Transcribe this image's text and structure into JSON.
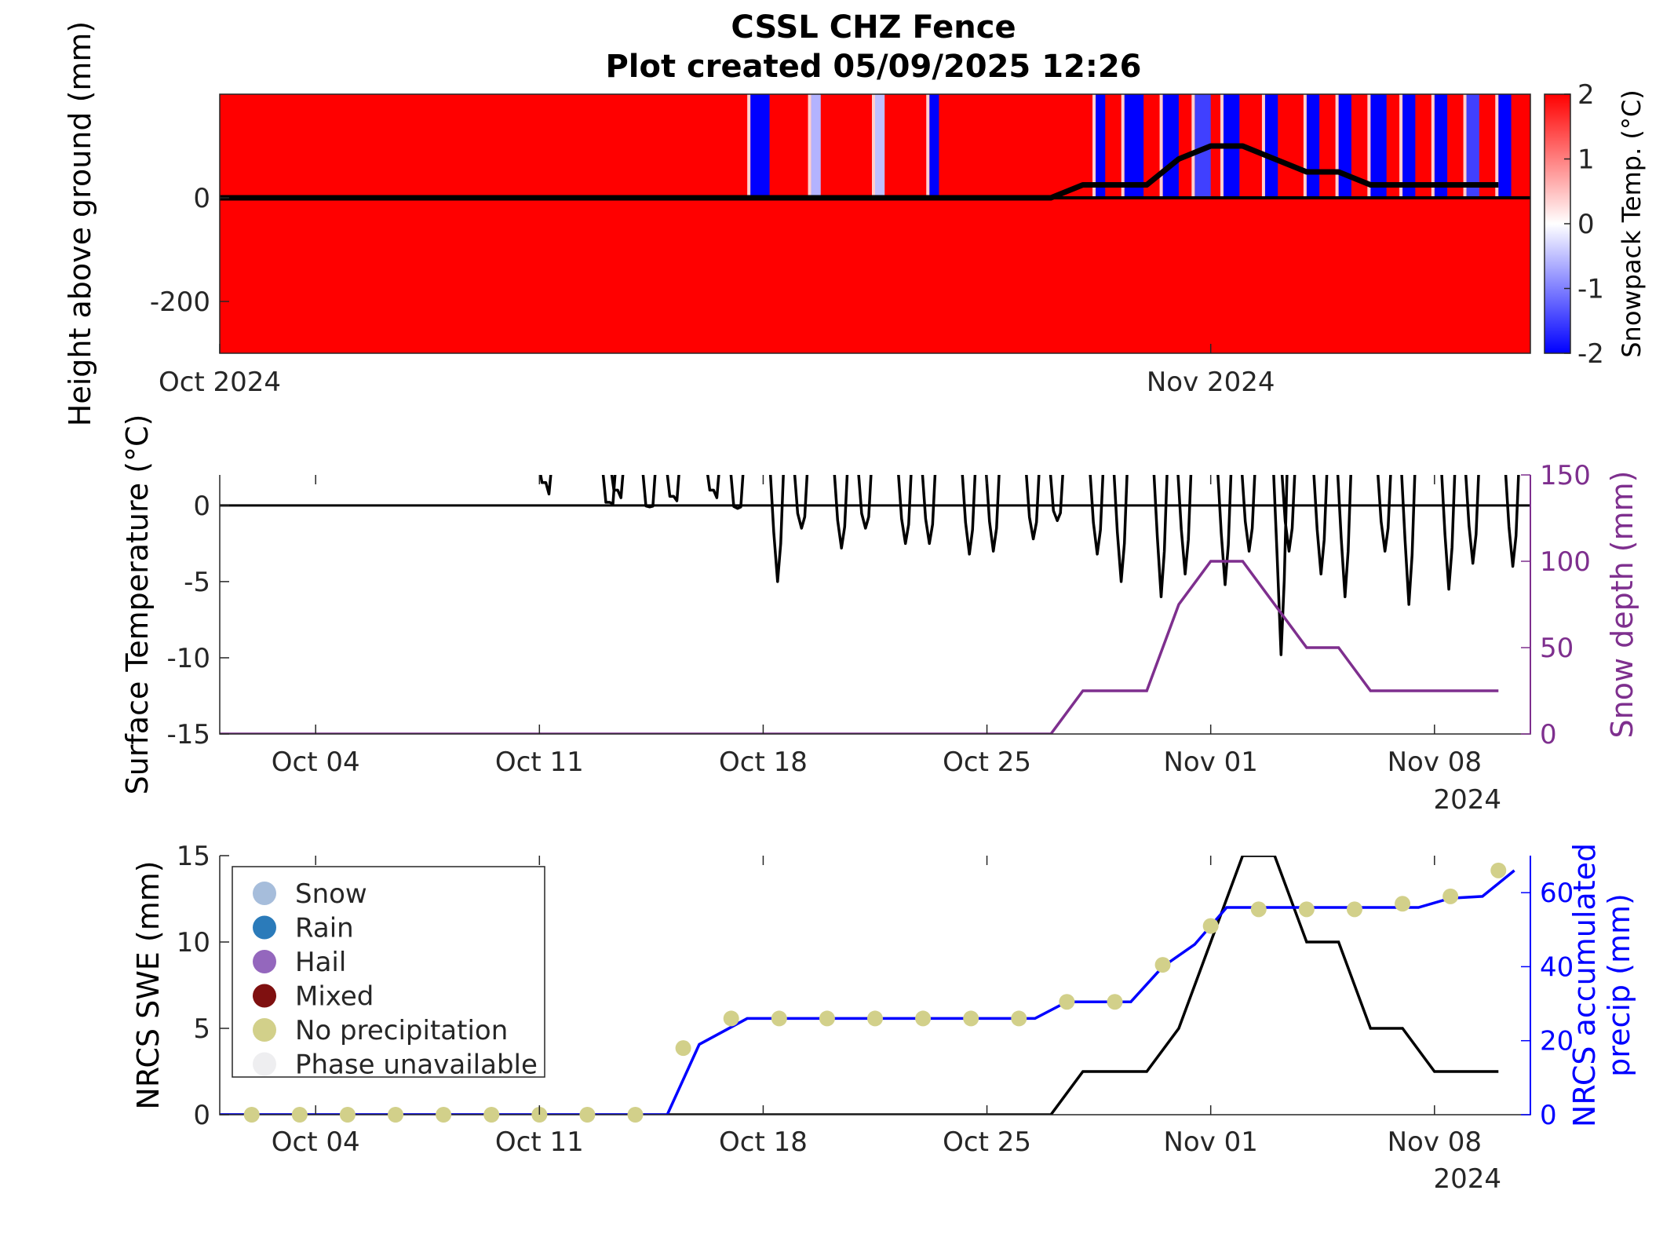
{
  "title": {
    "line1": "CSSL CHZ Fence",
    "line2": "Plot created 05/09/2025 12:26"
  },
  "colors": {
    "warm": "#ff0000",
    "cold": "#0000ff",
    "neutral": "#ffffff",
    "snow_depth": "#7e2f8e",
    "precip": "#0000ff",
    "swe": "#000000",
    "no_precip_marker": "#d2d08a"
  },
  "chart_data": [
    {
      "type": "heatmap",
      "ylabel": "Height above ground (mm)",
      "yticks": [
        -200,
        0
      ],
      "ytick_labels": [
        "-200",
        "0"
      ],
      "ylim": [
        -300,
        200
      ],
      "xlim": [
        "2024-10-01",
        "2024-11-11"
      ],
      "xticks": [
        "2024-10-01",
        "2024-11-01"
      ],
      "xtick_labels": [
        "Oct 2024",
        "Nov 2024"
      ],
      "colorbar": {
        "label": "Snowpack Temp. (°C)",
        "range": [
          -2,
          2
        ],
        "ticks": [
          "2",
          "1",
          "0",
          "-1",
          "-2"
        ],
        "colormap": "blue-white-red"
      },
      "surface_line": {
        "x": [
          "2024-10-01",
          "2024-10-27",
          "2024-10-28",
          "2024-10-30",
          "2024-10-31",
          "2024-11-01",
          "2024-11-02",
          "2024-11-03",
          "2024-11-04",
          "2024-11-05",
          "2024-11-06",
          "2024-11-07",
          "2024-11-10"
        ],
        "y": [
          0,
          0,
          25,
          25,
          75,
          100,
          100,
          75,
          50,
          50,
          25,
          25,
          25
        ]
      },
      "cold_spells": [
        {
          "start": "2024-10-17.6",
          "end": "2024-10-18.2",
          "level": -2
        },
        {
          "start": "2024-10-19.5",
          "end": "2024-10-19.8",
          "level": -0.6
        },
        {
          "start": "2024-10-21.5",
          "end": "2024-10-21.8",
          "level": -0.5
        },
        {
          "start": "2024-10-23.2",
          "end": "2024-10-23.5",
          "level": -2
        },
        {
          "start": "2024-10-28.4",
          "end": "2024-10-28.7",
          "level": -2
        },
        {
          "start": "2024-10-29.3",
          "end": "2024-10-29.9",
          "level": -2
        },
        {
          "start": "2024-10-30.5",
          "end": "2024-10-31.0",
          "level": -2
        },
        {
          "start": "2024-10-31.5",
          "end": "2024-11-01.0",
          "level": -1.5
        },
        {
          "start": "2024-11-01.4",
          "end": "2024-11-01.9",
          "level": -2
        },
        {
          "start": "2024-11-02.7",
          "end": "2024-11-03.1",
          "level": -2
        },
        {
          "start": "2024-11-04.0",
          "end": "2024-11-04.4",
          "level": -2
        },
        {
          "start": "2024-11-05.0",
          "end": "2024-11-05.4",
          "level": -2
        },
        {
          "start": "2024-11-06.0",
          "end": "2024-11-06.5",
          "level": -2
        },
        {
          "start": "2024-11-07.0",
          "end": "2024-11-07.4",
          "level": -2
        },
        {
          "start": "2024-11-08.0",
          "end": "2024-11-08.4",
          "level": -2
        },
        {
          "start": "2024-11-09.0",
          "end": "2024-11-09.4",
          "level": -1.5
        },
        {
          "start": "2024-11-10.0",
          "end": "2024-11-10.4",
          "level": -2
        }
      ]
    },
    {
      "type": "line",
      "ylabel": "Surface Temperature (°C)",
      "y2label": "Snow depth (mm)",
      "ylim": [
        -15,
        2
      ],
      "y2lim": [
        0,
        150
      ],
      "yticks": [
        0,
        -5,
        -10,
        -15
      ],
      "ytick_labels": [
        "0",
        "-5",
        "-10",
        "-15"
      ],
      "y2ticks": [
        150,
        100,
        50,
        0
      ],
      "y2tick_labels": [
        "150",
        "100",
        "50",
        "0"
      ],
      "xlim": [
        "2024-10-01",
        "2024-11-11"
      ],
      "xticks": [
        "2024-10-04",
        "2024-10-11",
        "2024-10-18",
        "2024-10-25",
        "2024-11-01",
        "2024-11-08"
      ],
      "xtick_labels": [
        "Oct 04",
        "Oct 11",
        "Oct 18",
        "Oct 25",
        "Nov 01",
        "Nov 08"
      ],
      "year_label": "2024",
      "series": [
        {
          "name": "Surface temperature",
          "axis": "left",
          "daily_min": [
            {
              "date": "2024-10-11",
              "min": 1.5
            },
            {
              "date": "2024-10-13",
              "min": 1.0
            },
            {
              "date": "2024-10-13",
              "min": 0.2
            },
            {
              "date": "2024-10-14",
              "min": -0.1
            },
            {
              "date": "2024-10-15",
              "min": 0.6
            },
            {
              "date": "2024-10-16",
              "min": 1.0
            },
            {
              "date": "2024-10-17",
              "min": -0.2
            },
            {
              "date": "2024-10-18",
              "min": -5.0
            },
            {
              "date": "2024-10-19",
              "min": -1.5
            },
            {
              "date": "2024-10-20",
              "min": -2.8
            },
            {
              "date": "2024-10-21",
              "min": -1.5
            },
            {
              "date": "2024-10-22",
              "min": -2.5
            },
            {
              "date": "2024-10-23",
              "min": -2.5
            },
            {
              "date": "2024-10-24",
              "min": -3.2
            },
            {
              "date": "2024-10-25",
              "min": -3.0
            },
            {
              "date": "2024-10-26",
              "min": -2.2
            },
            {
              "date": "2024-10-27",
              "min": -1.0
            },
            {
              "date": "2024-10-28",
              "min": -3.2
            },
            {
              "date": "2024-10-29",
              "min": -5.0
            },
            {
              "date": "2024-10-30",
              "min": -6.0
            },
            {
              "date": "2024-10-31",
              "min": -4.5
            },
            {
              "date": "2024-11-01",
              "min": -5.2
            },
            {
              "date": "2024-11-02",
              "min": -3.0
            },
            {
              "date": "2024-11-03",
              "min": -3.0
            },
            {
              "date": "2024-11-03",
              "min": -9.8
            },
            {
              "date": "2024-11-04",
              "min": -4.5
            },
            {
              "date": "2024-11-05",
              "min": -6.0
            },
            {
              "date": "2024-11-06",
              "min": -3.0
            },
            {
              "date": "2024-11-07",
              "min": -6.5
            },
            {
              "date": "2024-11-08",
              "min": -5.5
            },
            {
              "date": "2024-11-09",
              "min": -3.8
            },
            {
              "date": "2024-11-10",
              "min": -4.0
            }
          ]
        },
        {
          "name": "Snow depth",
          "axis": "right",
          "x": [
            "2024-10-01",
            "2024-10-27",
            "2024-10-28",
            "2024-10-30",
            "2024-10-31",
            "2024-11-01",
            "2024-11-02",
            "2024-11-03",
            "2024-11-04",
            "2024-11-05",
            "2024-11-06",
            "2024-11-07",
            "2024-11-09",
            "2024-11-10"
          ],
          "values": [
            0,
            0,
            25,
            25,
            75,
            100,
            100,
            75,
            50,
            50,
            25,
            25,
            25,
            25
          ]
        }
      ]
    },
    {
      "type": "line",
      "ylabel": "NRCS SWE (mm)",
      "y2label_lines": [
        "NRCS accumulated",
        "precip (mm)"
      ],
      "ylim": [
        0,
        15
      ],
      "y2lim": [
        0,
        70
      ],
      "yticks": [
        15,
        10,
        5,
        0
      ],
      "ytick_labels": [
        "15",
        "10",
        "5",
        "0"
      ],
      "y2ticks": [
        60,
        40,
        20,
        0
      ],
      "y2tick_labels": [
        "60",
        "40",
        "20",
        "0"
      ],
      "xlim": [
        "2024-10-01",
        "2024-11-11"
      ],
      "xticks": [
        "2024-10-04",
        "2024-10-11",
        "2024-10-18",
        "2024-10-25",
        "2024-11-01",
        "2024-11-08"
      ],
      "xtick_labels": [
        "Oct 04",
        "Oct 11",
        "Oct 18",
        "Oct 25",
        "Nov 01",
        "Nov 08"
      ],
      "year_label": "2024",
      "legend": {
        "position": "top-left",
        "entries": [
          {
            "label": "Snow",
            "color": "#a6bddb"
          },
          {
            "label": "Rain",
            "color": "#2b7bba"
          },
          {
            "label": "Hail",
            "color": "#9467bd"
          },
          {
            "label": "Mixed",
            "color": "#7f1010"
          },
          {
            "label": "No precipitation",
            "color": "#d2d08a"
          },
          {
            "label": "Phase unavailable",
            "color": "#eeeef0"
          }
        ]
      },
      "series": [
        {
          "name": "NRCS SWE",
          "axis": "left",
          "x": [
            "2024-10-01",
            "2024-10-27",
            "2024-10-28",
            "2024-10-30",
            "2024-10-31",
            "2024-11-01",
            "2024-11-02",
            "2024-11-03",
            "2024-11-04",
            "2024-11-05",
            "2024-11-06",
            "2024-11-07",
            "2024-11-08",
            "2024-11-09",
            "2024-11-10"
          ],
          "values": [
            0,
            0,
            2.5,
            2.5,
            5,
            10,
            15,
            15,
            10,
            10,
            5,
            5,
            2.5,
            2.5,
            2.5
          ]
        },
        {
          "name": "NRCS accumulated precip",
          "axis": "right",
          "x": [
            "2024-10-01",
            "2024-10-15",
            "2024-10-16",
            "2024-10-17.5",
            "2024-10-26.5",
            "2024-10-27.5",
            "2024-10-29.5",
            "2024-10-30.5",
            "2024-10-31.5",
            "2024-11-01.5",
            "2024-11-02.5",
            "2024-11-07.5",
            "2024-11-08.5",
            "2024-11-09.5",
            "2024-11-10.5"
          ],
          "values": [
            0,
            0,
            19,
            26,
            26,
            30.5,
            30.5,
            40,
            46,
            56,
            56,
            56,
            58.5,
            59,
            66
          ]
        }
      ],
      "markers": {
        "label": "No precipitation",
        "x": [
          "2024-10-02",
          "2024-10-03.5",
          "2024-10-05",
          "2024-10-06.5",
          "2024-10-08",
          "2024-10-09.5",
          "2024-10-11",
          "2024-10-12.5",
          "2024-10-14",
          "2024-10-15.5",
          "2024-10-17",
          "2024-10-18.5",
          "2024-10-20",
          "2024-10-21.5",
          "2024-10-23",
          "2024-10-24.5",
          "2024-10-26",
          "2024-10-27.5",
          "2024-10-29",
          "2024-10-30.5",
          "2024-11-01",
          "2024-11-02.5",
          "2024-11-04",
          "2024-11-05.5",
          "2024-11-07",
          "2024-11-08.5",
          "2024-11-10"
        ],
        "values": [
          0,
          0,
          0,
          0,
          0,
          0,
          0,
          0,
          0,
          18,
          26,
          26,
          26,
          26,
          26,
          26,
          26,
          30.5,
          30.5,
          40.5,
          51,
          55.5,
          55.5,
          55.5,
          57,
          59,
          66
        ]
      }
    }
  ]
}
